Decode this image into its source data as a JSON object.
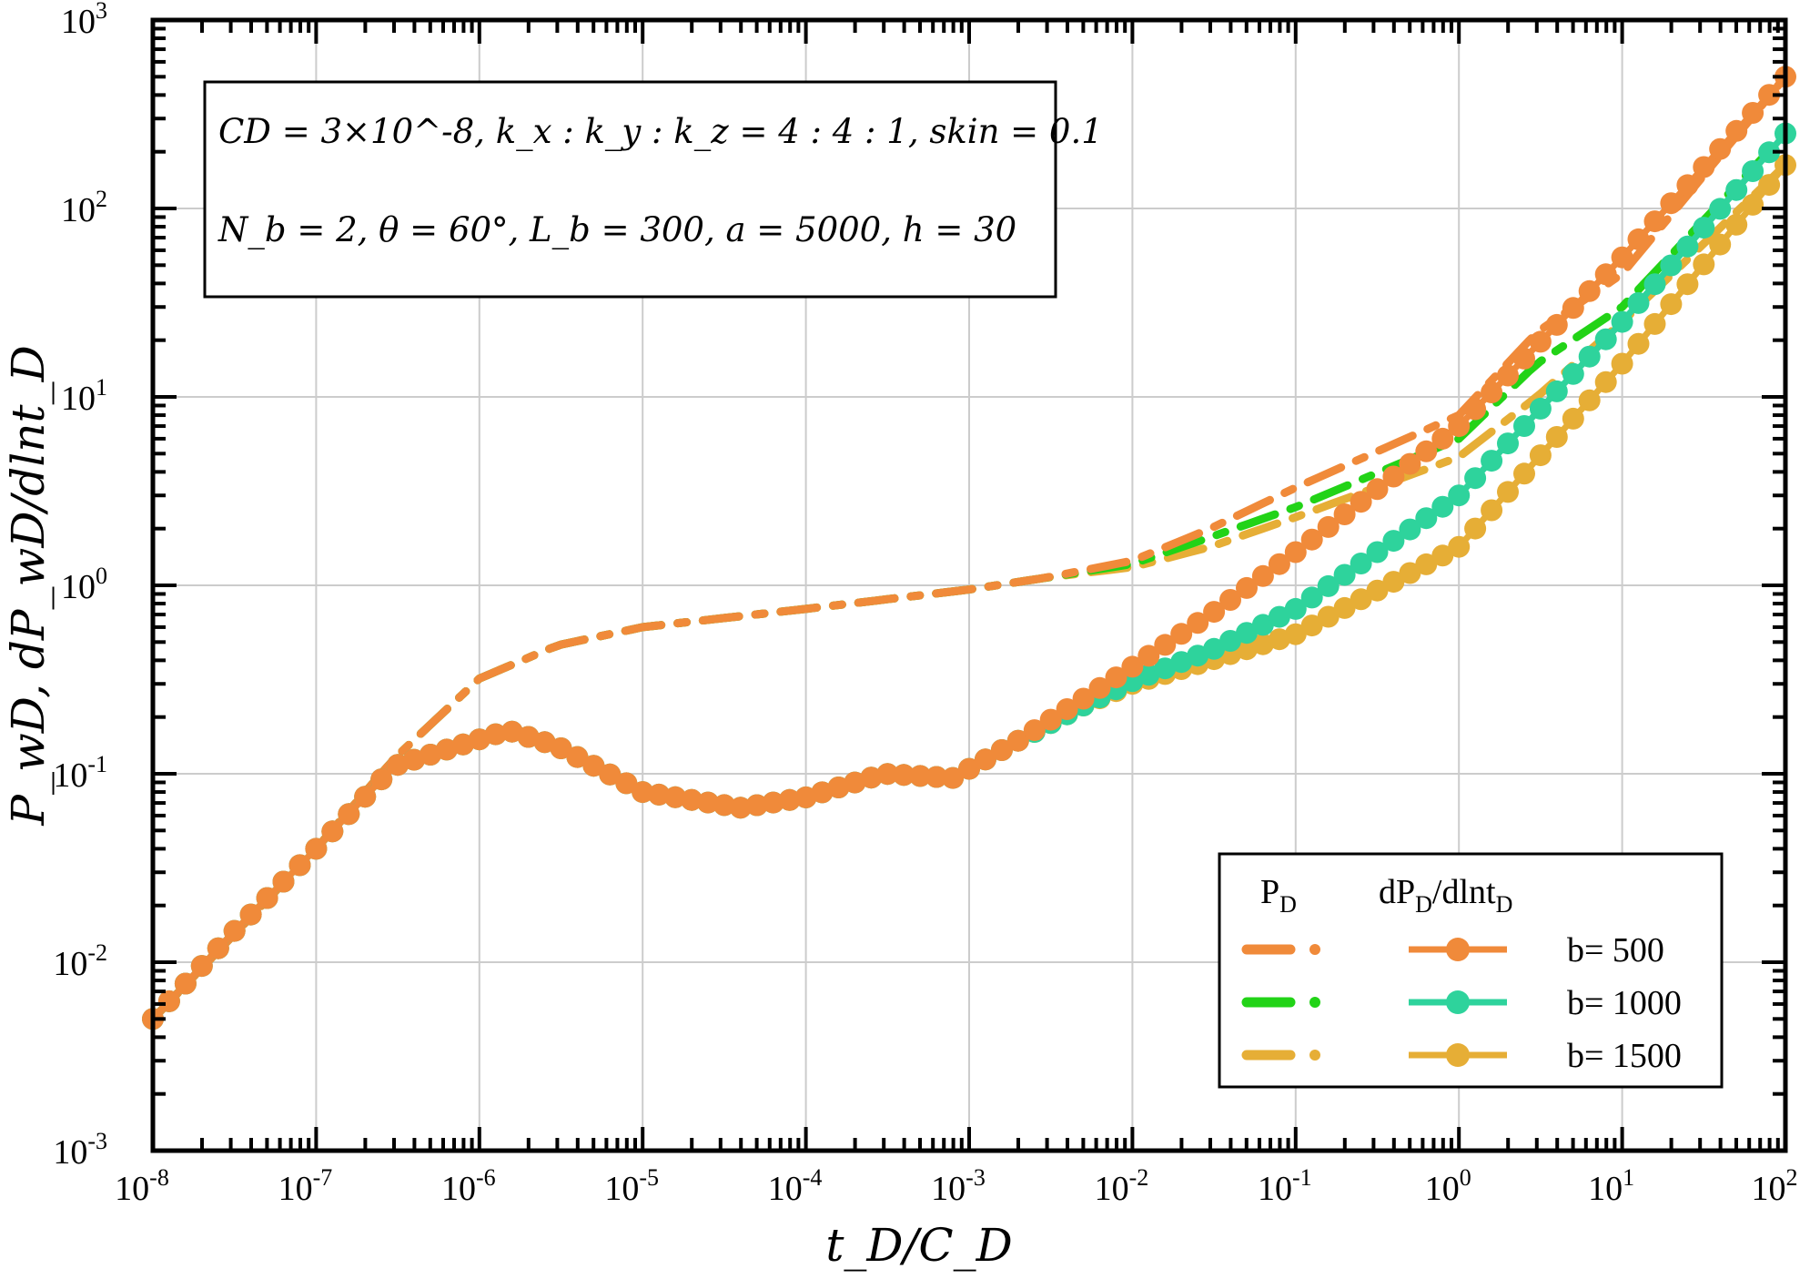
{
  "chart_data": {
    "type": "line",
    "xscale": "log",
    "yscale": "log",
    "xlim": [
      1e-08,
      100
    ],
    "ylim": [
      0.001,
      1000
    ],
    "xlabel": "t_D/C_D",
    "ylabel": "P_wD, dP_wD/dlnt_D",
    "x_ticks": [
      {
        "base": "10",
        "exp": "-8"
      },
      {
        "base": "10",
        "exp": "-7"
      },
      {
        "base": "10",
        "exp": "-6"
      },
      {
        "base": "10",
        "exp": "-5"
      },
      {
        "base": "10",
        "exp": "-4"
      },
      {
        "base": "10",
        "exp": "-3"
      },
      {
        "base": "10",
        "exp": "-2"
      },
      {
        "base": "10",
        "exp": "-1"
      },
      {
        "base": "10",
        "exp": "0"
      },
      {
        "base": "10",
        "exp": "1"
      },
      {
        "base": "10",
        "exp": "2"
      }
    ],
    "y_ticks": [
      {
        "base": "10",
        "exp": "-3"
      },
      {
        "base": "10",
        "exp": "-2"
      },
      {
        "base": "10",
        "exp": "-1"
      },
      {
        "base": "10",
        "exp": "0"
      },
      {
        "base": "10",
        "exp": "1"
      },
      {
        "base": "10",
        "exp": "2"
      },
      {
        "base": "10",
        "exp": "3"
      }
    ],
    "grid": true,
    "annotation_lines": [
      "CD = 3×10^-8, k_x : k_y : k_z = 4 : 4 : 1, skin = 0.1",
      "N_b = 2, θ = 60°, L_b = 300, a = 5000, h = 30"
    ],
    "legend": {
      "position": "bottom-right",
      "col1_header": "P",
      "col1_sub": "D",
      "col2_header_a": "dP",
      "col2_sub_a": "D",
      "col2_header_b": "/dlnt",
      "col2_sub_b": "D",
      "entries": [
        {
          "label": "b= 500",
          "color": "#F08A3A"
        },
        {
          "label": "b= 1000",
          "color": "#2ED39C"
        },
        {
          "label": "b= 1500",
          "color": "#E6AE36"
        }
      ]
    },
    "series": [
      {
        "name": "P_D b=500",
        "kind": "PD",
        "color": "#F08A3A",
        "x": [
          1e-08,
          1e-07,
          3e-07,
          1e-06,
          3e-06,
          1e-05,
          0.0001,
          0.001,
          0.003,
          0.01,
          0.03,
          0.1,
          1,
          3,
          10,
          100
        ],
        "y": [
          0.005,
          0.04,
          0.12,
          0.32,
          0.48,
          0.6,
          0.75,
          0.95,
          1.1,
          1.35,
          2.0,
          3.3,
          8.0,
          22,
          45,
          500
        ]
      },
      {
        "name": "P_D b=1000",
        "kind": "PD",
        "color": "#22D317",
        "x": [
          1e-08,
          1e-07,
          3e-07,
          1e-06,
          3e-06,
          1e-05,
          0.0001,
          0.001,
          0.003,
          0.01,
          0.03,
          0.1,
          1,
          3,
          10,
          100
        ],
        "y": [
          0.005,
          0.04,
          0.12,
          0.32,
          0.48,
          0.6,
          0.75,
          0.95,
          1.1,
          1.3,
          1.8,
          2.6,
          6.0,
          15,
          30,
          250
        ]
      },
      {
        "name": "P_D b=1500",
        "kind": "PD",
        "color": "#E6AE36",
        "x": [
          1e-08,
          1e-07,
          3e-07,
          1e-06,
          3e-06,
          1e-05,
          0.0001,
          0.001,
          0.003,
          0.01,
          0.03,
          0.1,
          1,
          3,
          10,
          100
        ],
        "y": [
          0.005,
          0.04,
          0.12,
          0.32,
          0.48,
          0.6,
          0.75,
          0.95,
          1.1,
          1.25,
          1.6,
          2.3,
          4.8,
          10,
          25,
          170
        ]
      },
      {
        "name": "dP_D/dlnt_D b=500",
        "kind": "dPD",
        "color": "#F08A3A",
        "x": [
          1e-08,
          3e-08,
          1e-07,
          3e-07,
          1.5e-06,
          3e-06,
          1e-05,
          4e-05,
          0.0001,
          0.0003,
          0.0008,
          0.002,
          0.005,
          0.01,
          0.03,
          0.1,
          1,
          10,
          100
        ],
        "y": [
          0.005,
          0.014,
          0.04,
          0.11,
          0.17,
          0.14,
          0.08,
          0.066,
          0.075,
          0.1,
          0.095,
          0.15,
          0.25,
          0.37,
          0.7,
          1.5,
          7.0,
          55,
          500
        ]
      },
      {
        "name": "dP_D/dlnt_D b=1000",
        "kind": "dPD",
        "color": "#2ED39C",
        "x": [
          1e-08,
          3e-08,
          1e-07,
          3e-07,
          1.5e-06,
          3e-06,
          1e-05,
          4e-05,
          0.0001,
          0.0003,
          0.0008,
          0.002,
          0.005,
          0.01,
          0.03,
          0.1,
          1,
          10,
          100
        ],
        "y": [
          0.005,
          0.014,
          0.04,
          0.11,
          0.17,
          0.14,
          0.08,
          0.066,
          0.075,
          0.1,
          0.095,
          0.15,
          0.23,
          0.31,
          0.45,
          0.75,
          3.0,
          25,
          250
        ]
      },
      {
        "name": "dP_D/dlnt_D b=1500",
        "kind": "dPD",
        "color": "#E6AE36",
        "x": [
          1e-08,
          3e-08,
          1e-07,
          3e-07,
          1.5e-06,
          3e-06,
          1e-05,
          4e-05,
          0.0001,
          0.0003,
          0.0008,
          0.002,
          0.005,
          0.01,
          0.03,
          0.1,
          1,
          10,
          100
        ],
        "y": [
          0.005,
          0.014,
          0.04,
          0.11,
          0.17,
          0.14,
          0.08,
          0.066,
          0.075,
          0.1,
          0.095,
          0.15,
          0.23,
          0.3,
          0.4,
          0.55,
          1.6,
          15,
          170
        ]
      }
    ]
  }
}
